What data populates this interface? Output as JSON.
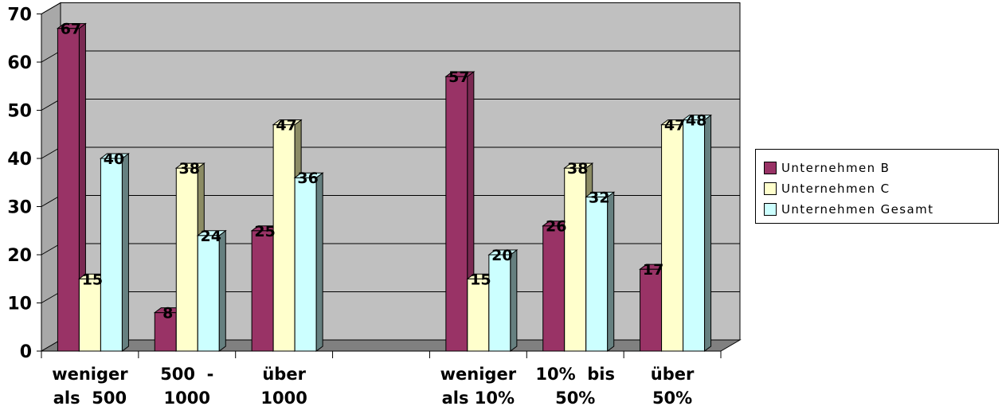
{
  "chart_data": {
    "type": "bar",
    "categories": [
      [
        "weniger",
        "als  500"
      ],
      [
        "500  -",
        "1000"
      ],
      [
        "über",
        "1000"
      ],
      [
        "",
        ""
      ],
      [
        "weniger",
        "als 10%"
      ],
      [
        "10%  bis",
        "50%"
      ],
      [
        "über",
        "50%"
      ]
    ],
    "series": [
      {
        "name": "Unternehmen B",
        "values": [
          67,
          8,
          25,
          null,
          57,
          26,
          17
        ]
      },
      {
        "name": "Unternehmen C",
        "values": [
          15,
          38,
          47,
          null,
          15,
          38,
          47
        ]
      },
      {
        "name": "Unternehmen Gesamt",
        "values": [
          40,
          24,
          36,
          null,
          20,
          32,
          48
        ]
      }
    ],
    "ylim": [
      0,
      70
    ],
    "yticks": [
      "0",
      "10",
      "20",
      "30",
      "40",
      "50",
      "60",
      "70"
    ],
    "grid": true,
    "style": "3d-clustered-column",
    "legend_position": "right",
    "colors": {
      "series": [
        "#993366",
        "#ffffcc",
        "#ccffff"
      ],
      "series_side": [
        "#7a2952",
        "#8c8c64",
        "#668080"
      ],
      "wall": "#c0c0c0",
      "floor": "#808080"
    }
  }
}
